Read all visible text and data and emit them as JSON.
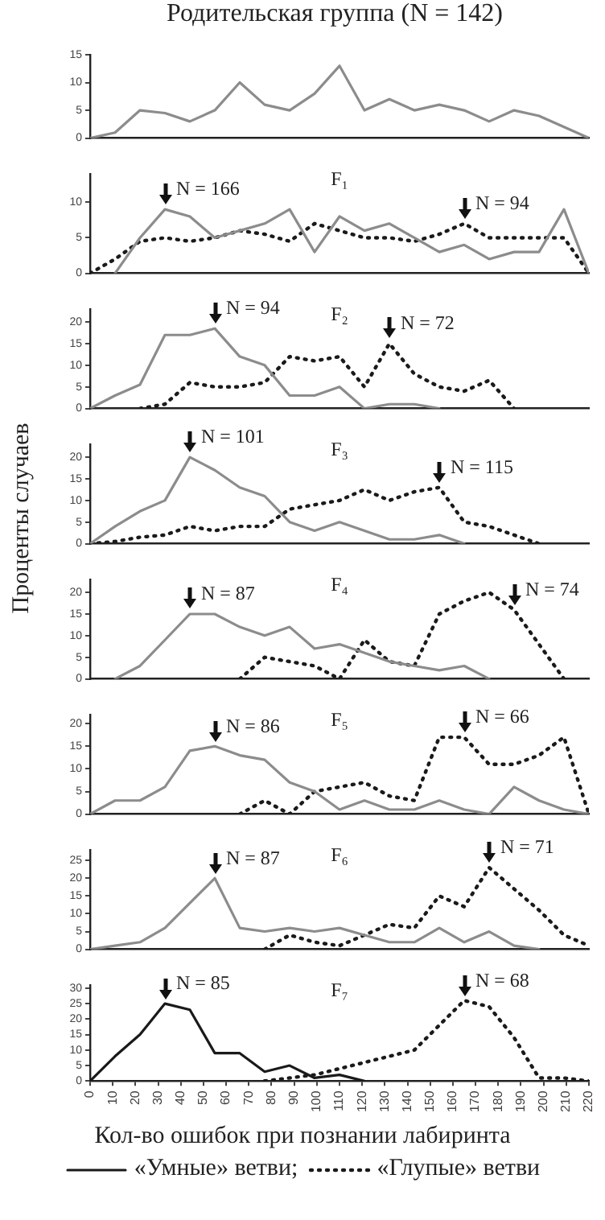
{
  "chart_data": [
    {
      "type": "line",
      "title": "Родительская группа (N = 142)",
      "x": [
        0,
        11,
        22,
        33,
        44,
        55,
        66,
        77,
        88,
        99,
        110,
        121,
        132,
        143,
        154,
        165,
        176,
        187,
        198,
        209,
        220
      ],
      "xlim": [
        0,
        220
      ],
      "ylim": [
        0,
        15
      ],
      "yticks": [
        0,
        5,
        10,
        15
      ],
      "tick_labels": "y",
      "series": [
        {
          "color": "#8c8c8c",
          "line_style": "solid",
          "values": [
            0,
            1,
            5,
            4.5,
            3,
            5,
            10,
            6,
            5,
            8,
            13,
            5,
            7,
            5,
            6,
            5,
            3,
            5,
            4,
            2,
            0
          ]
        }
      ]
    },
    {
      "type": "line",
      "title": "F₁",
      "x": [
        0,
        11,
        22,
        33,
        44,
        55,
        66,
        77,
        88,
        99,
        110,
        121,
        132,
        143,
        154,
        165,
        176,
        187,
        198,
        209,
        220
      ],
      "xlim": [
        0,
        220
      ],
      "ylim": [
        0,
        14
      ],
      "yticks": [
        0,
        5,
        10
      ],
      "tick_labels": "y",
      "annotations": [
        {
          "text": "N = 166",
          "x": 33,
          "y": 9
        },
        {
          "text": "N = 94",
          "x": 165,
          "y": 7
        }
      ],
      "series": [
        {
          "color": "#8c8c8c",
          "line_style": "solid",
          "values": [
            null,
            0,
            5,
            9,
            8,
            5,
            6,
            7,
            9,
            3,
            8,
            6,
            7,
            5,
            3,
            4,
            2,
            3,
            3,
            9,
            0
          ]
        },
        {
          "color": "#1a1a1a",
          "line_style": "dotted",
          "values": [
            0,
            2,
            4.5,
            5,
            4.5,
            5,
            6,
            5.5,
            4.5,
            7,
            6,
            5,
            5,
            4.5,
            5.5,
            7,
            5,
            5,
            5,
            5,
            0
          ]
        }
      ]
    },
    {
      "type": "line",
      "title": "F₂",
      "x": [
        0,
        11,
        22,
        33,
        44,
        55,
        66,
        77,
        88,
        99,
        110,
        121,
        132,
        143,
        154,
        165,
        176,
        187
      ],
      "xlim": [
        0,
        220
      ],
      "ylim": [
        0,
        23
      ],
      "yticks": [
        0,
        5,
        10,
        15,
        20
      ],
      "tick_labels": "y",
      "annotations": [
        {
          "text": "N = 94",
          "x": 55,
          "y": 18.5
        },
        {
          "text": "N = 72",
          "x": 132,
          "y": 15
        }
      ],
      "series": [
        {
          "color": "#8c8c8c",
          "line_style": "solid",
          "values": [
            0,
            3,
            5.5,
            17,
            17,
            18.5,
            12,
            10,
            3,
            3,
            5,
            0,
            1,
            1,
            0,
            null,
            null,
            null
          ]
        },
        {
          "color": "#1a1a1a",
          "line_style": "dotted",
          "values": [
            null,
            null,
            0,
            1,
            6,
            5,
            5,
            6,
            12,
            11,
            12,
            5,
            15,
            8,
            5,
            4,
            6.5,
            0
          ]
        }
      ]
    },
    {
      "type": "line",
      "title": "F₃",
      "x": [
        0,
        11,
        22,
        33,
        44,
        55,
        66,
        77,
        88,
        99,
        110,
        121,
        132,
        143,
        154,
        165,
        176,
        187,
        198
      ],
      "xlim": [
        0,
        220
      ],
      "ylim": [
        0,
        23
      ],
      "yticks": [
        0,
        5,
        10,
        15,
        20
      ],
      "tick_labels": "y",
      "annotations": [
        {
          "text": "N = 101",
          "x": 44,
          "y": 20
        },
        {
          "text": "N = 115",
          "x": 154,
          "y": 13
        }
      ],
      "series": [
        {
          "color": "#8c8c8c",
          "line_style": "solid",
          "values": [
            0,
            4,
            7.5,
            10,
            20,
            17,
            13,
            11,
            5,
            3,
            5,
            3,
            1,
            1,
            2,
            0,
            null,
            null,
            null
          ]
        },
        {
          "color": "#1a1a1a",
          "line_style": "dotted",
          "values": [
            0,
            0.5,
            1.5,
            2,
            4,
            3,
            4,
            4,
            8,
            9,
            10,
            12.5,
            10,
            12,
            13,
            5,
            4,
            2,
            0
          ]
        }
      ]
    },
    {
      "type": "line",
      "title": "F₄",
      "ylabel": "Проценты случаев",
      "x": [
        11,
        22,
        33,
        44,
        55,
        66,
        77,
        88,
        99,
        110,
        121,
        132,
        143,
        154,
        165,
        176,
        187,
        198,
        209
      ],
      "xlim": [
        0,
        220
      ],
      "ylim": [
        0,
        23
      ],
      "yticks": [
        0,
        5,
        10,
        15,
        20
      ],
      "tick_labels": "y",
      "annotations": [
        {
          "text": "N = 87",
          "x": 44,
          "y": 15
        },
        {
          "text": "N = 74",
          "x": 187,
          "y": 16
        }
      ],
      "series": [
        {
          "color": "#8c8c8c",
          "line_style": "solid",
          "values": [
            0,
            3,
            9,
            15,
            15,
            12,
            10,
            12,
            7,
            8,
            6,
            4,
            3,
            2,
            3,
            0,
            null,
            null,
            null
          ]
        },
        {
          "color": "#1a1a1a",
          "line_style": "dotted",
          "values": [
            null,
            null,
            null,
            null,
            null,
            0,
            5,
            4,
            3,
            0,
            9,
            4,
            3,
            15,
            18,
            20,
            16,
            8,
            0
          ]
        }
      ]
    },
    {
      "type": "line",
      "title": "F₅",
      "x": [
        0,
        11,
        22,
        33,
        44,
        55,
        66,
        77,
        88,
        99,
        110,
        121,
        132,
        143,
        154,
        165,
        176,
        187,
        198,
        209,
        220
      ],
      "xlim": [
        0,
        220
      ],
      "ylim": [
        0,
        22
      ],
      "yticks": [
        0,
        5,
        10,
        15,
        20
      ],
      "tick_labels": "y",
      "annotations": [
        {
          "text": "N = 86",
          "x": 55,
          "y": 15
        },
        {
          "text": "N = 66",
          "x": 165,
          "y": 17
        }
      ],
      "series": [
        {
          "color": "#8c8c8c",
          "line_style": "solid",
          "values": [
            0,
            3,
            3,
            6,
            14,
            15,
            13,
            12,
            7,
            5,
            1,
            3,
            1,
            1,
            3,
            1,
            0,
            6,
            3,
            1,
            0
          ]
        },
        {
          "color": "#1a1a1a",
          "line_style": "dotted",
          "values": [
            null,
            null,
            null,
            null,
            null,
            null,
            0,
            3,
            0,
            5,
            6,
            7,
            4,
            3,
            17,
            17,
            11,
            11,
            13,
            17,
            0
          ]
        }
      ]
    },
    {
      "type": "line",
      "title": "F₆",
      "x": [
        0,
        11,
        22,
        33,
        44,
        55,
        66,
        77,
        88,
        99,
        110,
        121,
        132,
        143,
        154,
        165,
        176,
        187,
        198,
        209,
        220
      ],
      "xlim": [
        0,
        220
      ],
      "ylim": [
        0,
        28
      ],
      "yticks": [
        0,
        5,
        10,
        15,
        20,
        25
      ],
      "tick_labels": "y",
      "annotations": [
        {
          "text": "N = 87",
          "x": 55,
          "y": 20
        },
        {
          "text": "N = 71",
          "x": 176,
          "y": 23
        }
      ],
      "series": [
        {
          "color": "#8c8c8c",
          "line_style": "solid",
          "values": [
            0,
            1,
            2,
            6,
            13,
            20,
            6,
            5,
            6,
            5,
            6,
            4,
            2,
            2,
            6,
            2,
            5,
            1,
            0,
            null,
            null
          ]
        },
        {
          "color": "#1a1a1a",
          "line_style": "dotted",
          "values": [
            null,
            null,
            null,
            null,
            null,
            null,
            null,
            0,
            4,
            2,
            1,
            4,
            7,
            6,
            15,
            12,
            23,
            17,
            11,
            4,
            1
          ]
        }
      ]
    },
    {
      "type": "line",
      "title": "F₇",
      "xlabel": "Кол-во ошибок при познании лабиринта",
      "legend": "bottom",
      "x": [
        0,
        11,
        22,
        33,
        44,
        55,
        66,
        77,
        88,
        99,
        110,
        121,
        132,
        143,
        154,
        165,
        176,
        187,
        198,
        209,
        220
      ],
      "xlim": [
        0,
        220
      ],
      "xticks": [
        0,
        10,
        20,
        30,
        40,
        50,
        60,
        70,
        80,
        90,
        100,
        110,
        120,
        130,
        140,
        150,
        160,
        170,
        180,
        190,
        200,
        210,
        220
      ],
      "ylim": [
        0,
        31
      ],
      "yticks": [
        0,
        5,
        10,
        15,
        20,
        25,
        30
      ],
      "annotations": [
        {
          "text": "N = 85",
          "x": 33,
          "y": 25
        },
        {
          "text": "N = 68",
          "x": 165,
          "y": 26
        }
      ],
      "series": [
        {
          "name": "«Умные» ветви;",
          "color": "#1a1a1a",
          "line_style": "solid",
          "values": [
            0,
            8,
            15,
            25,
            23,
            9,
            9,
            3,
            5,
            1,
            2,
            0,
            null,
            null,
            null,
            null,
            null,
            null,
            null,
            null,
            null
          ]
        },
        {
          "name": "«Глупые» ветви",
          "color": "#1a1a1a",
          "line_style": "dotted",
          "values": [
            null,
            null,
            null,
            null,
            null,
            null,
            null,
            0,
            1,
            2,
            4,
            6,
            8,
            10,
            18,
            26,
            24,
            14,
            1,
            1,
            0
          ]
        }
      ]
    }
  ]
}
